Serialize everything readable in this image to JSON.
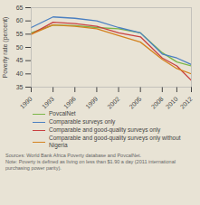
{
  "chart_data": {
    "type": "line",
    "x": [
      1990,
      1993,
      1996,
      1999,
      2002,
      2005,
      2008,
      2010,
      2012
    ],
    "series": [
      {
        "name": "PovcalNet",
        "color": "#7ab648",
        "values": [
          55.5,
          58.5,
          58.2,
          57.5,
          57.0,
          55.5,
          48.0,
          44.5,
          43.0
        ]
      },
      {
        "name": "Comparable surveys only",
        "color": "#4a7fc1",
        "values": [
          57.5,
          61.5,
          61.0,
          60.0,
          57.5,
          55.5,
          47.5,
          46.0,
          43.5
        ]
      },
      {
        "name": "Comparable and good-quality surveys only",
        "color": "#c94040",
        "values": [
          55.0,
          59.5,
          59.0,
          58.0,
          55.5,
          54.0,
          46.0,
          43.0,
          37.5
        ]
      },
      {
        "name": "Comparable and good-quality surveys only without Nigeria",
        "color": "#d4821e",
        "values": [
          55.0,
          58.5,
          58.0,
          57.0,
          54.5,
          52.0,
          45.5,
          42.0,
          40.0
        ]
      }
    ],
    "xlim": [
      1990,
      2012
    ],
    "xticks": [
      1990,
      1993,
      1996,
      1999,
      2002,
      2005,
      2008,
      2010,
      2012
    ],
    "ylim": [
      35,
      65
    ],
    "yticks": [
      35,
      40,
      45,
      50,
      55,
      60,
      65
    ],
    "ylabel": "Poverty rate (percent)",
    "legend": "bottom",
    "grid": false,
    "annotations": [
      "Sources: World Bank Africa Poverty database and PovcalNet.\nNote: Poverty is defined as living on less than $1.90 a day (2011 international purchasing power parity)."
    ]
  }
}
